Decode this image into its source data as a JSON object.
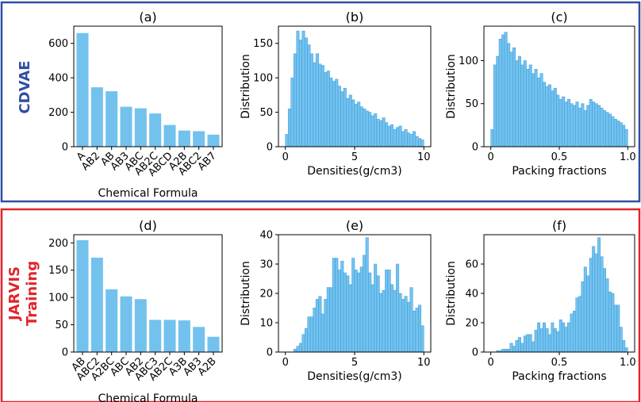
{
  "colors": {
    "bar": "#73c2ee",
    "bar_edge": "#3a9ad9",
    "cdvae": "#2f4fa5",
    "jarvis": "#e0262c"
  },
  "rows": [
    {
      "label": "CDVAE",
      "color": "#2f4fa5"
    },
    {
      "label_lines": [
        "JARVIS",
        "Training"
      ],
      "color": "#e0262c"
    }
  ],
  "chart_data": [
    {
      "type": "bar",
      "title": "(a)",
      "xlabel": "Chemical Formula",
      "ylabel": "",
      "categories": [
        "A",
        "AB2",
        "AB",
        "AB3",
        "ABC",
        "AB2C",
        "ABCD",
        "A2B",
        "ABC2",
        "AB7"
      ],
      "values": [
        660,
        345,
        322,
        232,
        223,
        193,
        126,
        94,
        90,
        70
      ],
      "ylim": [
        0,
        700
      ],
      "yticks": [
        0,
        200,
        400,
        600
      ]
    },
    {
      "type": "bar",
      "subtype": "histogram",
      "title": "(b)",
      "xlabel": "Densities(g/cm3)",
      "ylabel": "Distribution",
      "x_range": [
        0,
        10
      ],
      "bin_width": 0.2,
      "xlim": [
        -0.5,
        10.5
      ],
      "xticks": [
        0,
        5,
        10
      ],
      "values": [
        18,
        55,
        100,
        135,
        168,
        155,
        168,
        158,
        148,
        135,
        122,
        135,
        120,
        118,
        108,
        110,
        100,
        95,
        98,
        88,
        80,
        85,
        70,
        75,
        68,
        62,
        65,
        58,
        55,
        52,
        50,
        45,
        48,
        40,
        38,
        42,
        35,
        30,
        32,
        25,
        28,
        30,
        22,
        25,
        20,
        18,
        22,
        15,
        12,
        10
      ],
      "ylim": [
        0,
        175
      ],
      "yticks": [
        0,
        50,
        100,
        150
      ]
    },
    {
      "type": "bar",
      "subtype": "histogram",
      "title": "(c)",
      "xlabel": "Packing fractions",
      "ylabel": "Distribution",
      "x_range": [
        0,
        1
      ],
      "bin_width": 0.02,
      "xlim": [
        -0.05,
        1.05
      ],
      "xticks": [
        0,
        0.5,
        1.0
      ],
      "xticklabels": [
        "0",
        "0.5",
        "1.0"
      ],
      "values": [
        20,
        95,
        105,
        125,
        130,
        133,
        120,
        110,
        115,
        100,
        105,
        95,
        100,
        90,
        95,
        85,
        90,
        80,
        85,
        75,
        70,
        72,
        65,
        68,
        60,
        55,
        58,
        52,
        55,
        50,
        48,
        52,
        45,
        50,
        42,
        48,
        55,
        52,
        50,
        48,
        45,
        42,
        40,
        38,
        35,
        32,
        30,
        28,
        25,
        20
      ],
      "ylim": [
        0,
        140
      ],
      "yticks": [
        0,
        50,
        100
      ]
    },
    {
      "type": "bar",
      "title": "(d)",
      "xlabel": "Chemical Formula",
      "ylabel": "",
      "categories": [
        "AB",
        "ABC2",
        "A2BC",
        "ABC",
        "AB2",
        "ABC3",
        "AB2C",
        "A3B",
        "AB3",
        "A2B"
      ],
      "values": [
        205,
        173,
        115,
        102,
        97,
        59,
        59,
        58,
        46,
        28
      ],
      "ylim": [
        0,
        215
      ],
      "yticks": [
        0,
        50,
        100,
        150,
        200
      ]
    },
    {
      "type": "bar",
      "subtype": "histogram",
      "title": "(e)",
      "xlabel": "Densities(g/cm3)",
      "ylabel": "Distribution",
      "x_range": [
        0,
        10
      ],
      "bin_width": 0.2,
      "xlim": [
        -0.5,
        10.5
      ],
      "xticks": [
        0,
        5,
        10
      ],
      "values": [
        0,
        0,
        0,
        1,
        2,
        3,
        6,
        8,
        12,
        12,
        15,
        18,
        19,
        13,
        18,
        22,
        22,
        32,
        32,
        28,
        31,
        27,
        26,
        23,
        32,
        28,
        27,
        29,
        33,
        39,
        27,
        23,
        30,
        26,
        20,
        21,
        28,
        28,
        23,
        21,
        30,
        20,
        18,
        19,
        17,
        22,
        14,
        15,
        16,
        9
      ],
      "ylim": [
        0,
        40
      ],
      "yticks": [
        0,
        10,
        20,
        30,
        40
      ]
    },
    {
      "type": "bar",
      "subtype": "histogram",
      "title": "(f)",
      "xlabel": "Packing fractions",
      "ylabel": "Distribution",
      "x_range": [
        0,
        1
      ],
      "bin_width": 0.02,
      "xlim": [
        -0.05,
        1.05
      ],
      "xticks": [
        0,
        0.5,
        1.0
      ],
      "xticklabels": [
        "0",
        "0.5",
        "1.0"
      ],
      "values": [
        0,
        0,
        1,
        1,
        2,
        2,
        2,
        6,
        4,
        8,
        10,
        6,
        11,
        12,
        12,
        7,
        15,
        20,
        16,
        20,
        16,
        12,
        20,
        16,
        14,
        22,
        20,
        17,
        20,
        26,
        28,
        37,
        38,
        48,
        58,
        52,
        64,
        72,
        67,
        78,
        65,
        57,
        50,
        41,
        40,
        32,
        32,
        17,
        8,
        3
      ],
      "ylim": [
        0,
        80
      ],
      "yticks": [
        0,
        20,
        40,
        60
      ]
    }
  ]
}
